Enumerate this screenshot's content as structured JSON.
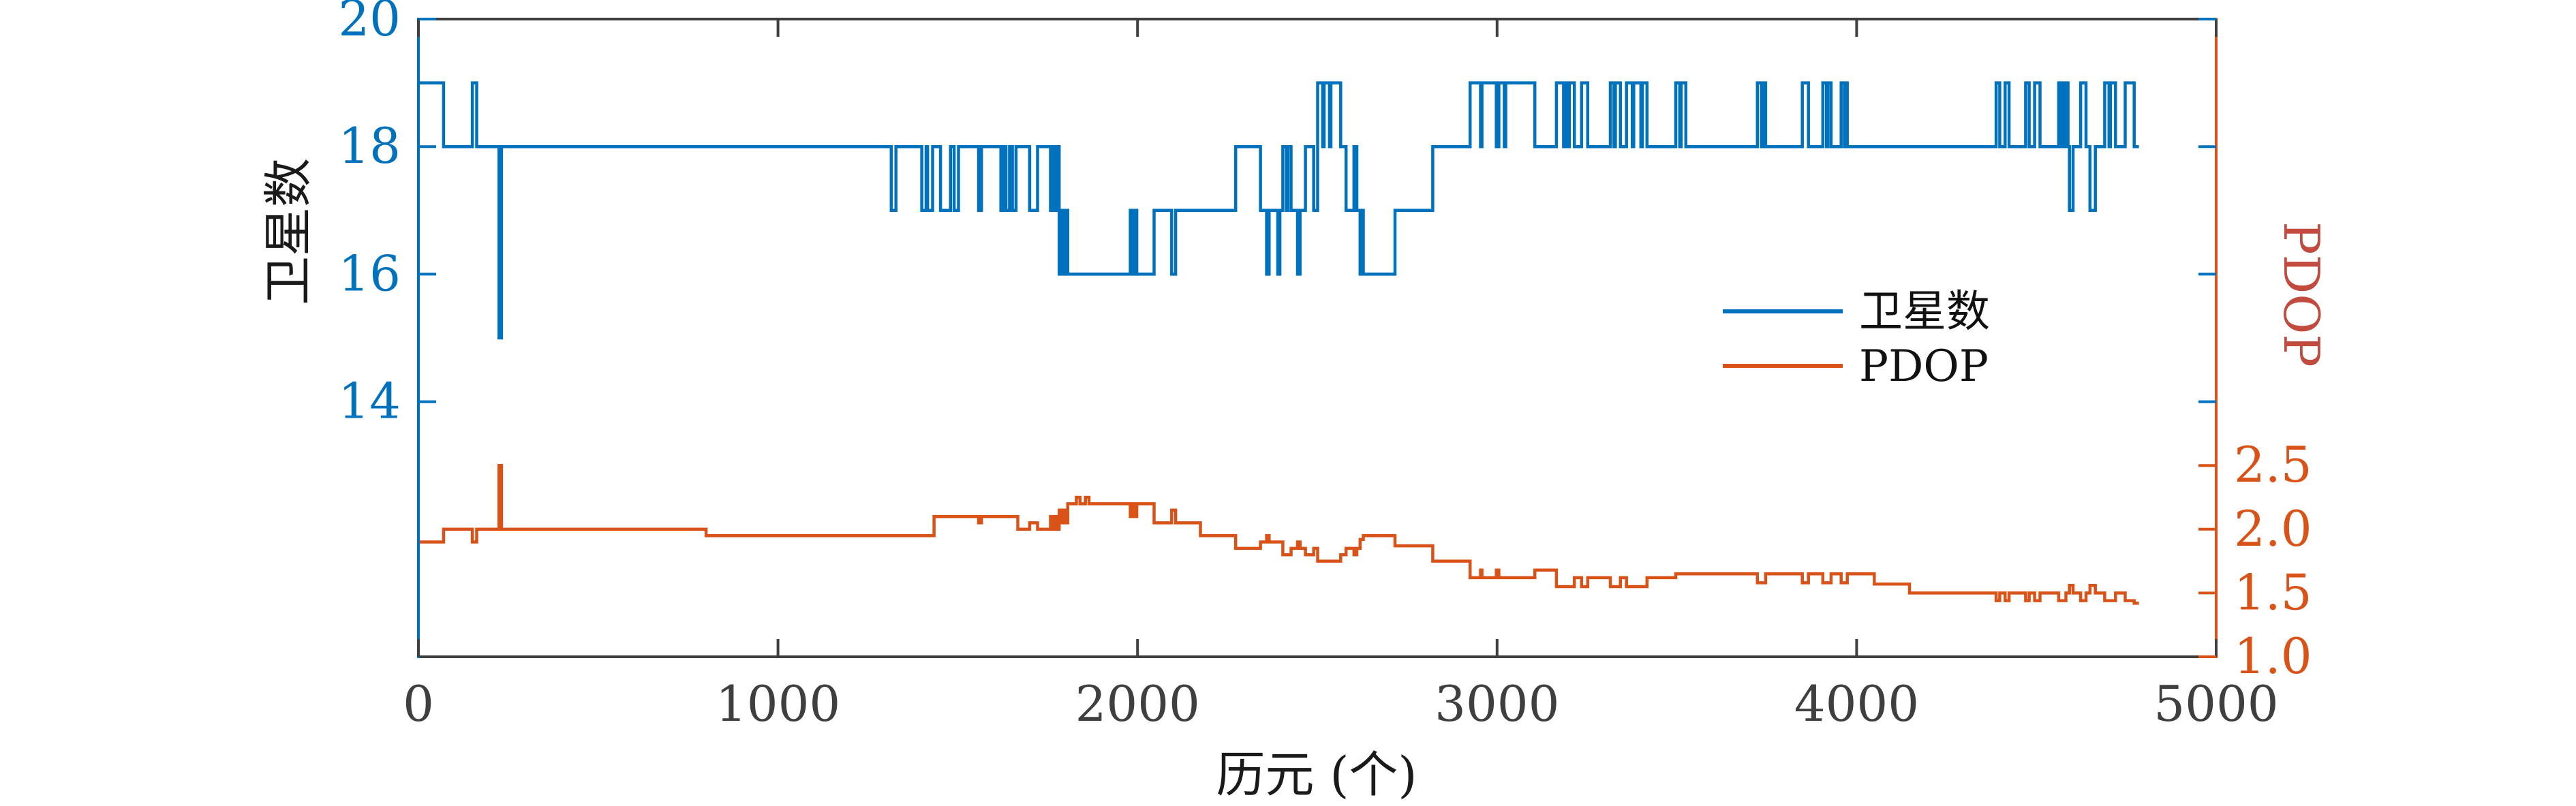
{
  "chart_data": {
    "type": "line",
    "style": "stairstep",
    "x_axis": {
      "label": "历元 (个)",
      "xlim": [
        0,
        5000
      ],
      "ticks": [
        "0",
        "1000",
        "2000",
        "3000",
        "4000",
        "5000"
      ],
      "tick_values": [
        0,
        1000,
        2000,
        3000,
        4000,
        5000
      ],
      "tick_color": "#3f3f3f",
      "label_color": "#1a1a1a"
    },
    "left_axis": {
      "label": "卫星数",
      "ylim": [
        10,
        20
      ],
      "ticks": [
        "14",
        "16",
        "18",
        "20"
      ],
      "tick_values": [
        14,
        16,
        18,
        20
      ],
      "axis_color": "#0072BD",
      "label_color": "#1a1a1a"
    },
    "right_axis": {
      "label": "PDOP",
      "ylim": [
        1,
        6
      ],
      "ticks": [
        "1.0",
        "1.5",
        "2.0",
        "2.5"
      ],
      "tick_values": [
        1.0,
        1.5,
        2.0,
        2.5
      ],
      "axis_color": "#D95319",
      "label_color": "#c24b3f"
    },
    "legend": [
      {
        "label": "卫星数",
        "color": "#0072BD"
      },
      {
        "label": "PDOP",
        "color": "#D95319"
      }
    ],
    "frame_color": "#3f3f3f",
    "grid": false,
    "end_epoch": 4785,
    "series": [
      {
        "name": "卫星数",
        "axis": "left",
        "color": "#0072BD",
        "steps": [
          [
            0,
            19
          ],
          [
            70,
            18
          ],
          [
            150,
            19
          ],
          [
            162,
            18
          ],
          [
            224,
            15
          ],
          [
            231,
            18
          ],
          [
            1315,
            17
          ],
          [
            1328,
            18
          ],
          [
            1400,
            17
          ],
          [
            1412,
            18
          ],
          [
            1416,
            17
          ],
          [
            1430,
            18
          ],
          [
            1452,
            17
          ],
          [
            1480,
            18
          ],
          [
            1490,
            17
          ],
          [
            1502,
            18
          ],
          [
            1558,
            17
          ],
          [
            1566,
            18
          ],
          [
            1620,
            17
          ],
          [
            1626,
            18
          ],
          [
            1634,
            17
          ],
          [
            1644,
            18
          ],
          [
            1652,
            17
          ],
          [
            1662,
            18
          ],
          [
            1700,
            17
          ],
          [
            1722,
            18
          ],
          [
            1758,
            17
          ],
          [
            1764,
            18
          ],
          [
            1770,
            17
          ],
          [
            1776,
            18
          ],
          [
            1782,
            16
          ],
          [
            1788,
            17
          ],
          [
            1794,
            16
          ],
          [
            1800,
            17
          ],
          [
            1806,
            16
          ],
          [
            1980,
            17
          ],
          [
            1987,
            16
          ],
          [
            1992,
            17
          ],
          [
            1998,
            16
          ],
          [
            2046,
            17
          ],
          [
            2095,
            16
          ],
          [
            2106,
            17
          ],
          [
            2273,
            18
          ],
          [
            2342,
            17
          ],
          [
            2359,
            16
          ],
          [
            2366,
            17
          ],
          [
            2390,
            16
          ],
          [
            2396,
            17
          ],
          [
            2404,
            18
          ],
          [
            2414,
            17
          ],
          [
            2418,
            18
          ],
          [
            2427,
            17
          ],
          [
            2445,
            16
          ],
          [
            2452,
            17
          ],
          [
            2467,
            18
          ],
          [
            2490,
            17
          ],
          [
            2501,
            19
          ],
          [
            2515,
            18
          ],
          [
            2519,
            19
          ],
          [
            2534,
            18
          ],
          [
            2538,
            19
          ],
          [
            2565,
            18
          ],
          [
            2580,
            17
          ],
          [
            2602,
            18
          ],
          [
            2610,
            17
          ],
          [
            2619,
            16
          ],
          [
            2625,
            17
          ],
          [
            2628,
            16
          ],
          [
            2716,
            17
          ],
          [
            2821,
            18
          ],
          [
            2925,
            19
          ],
          [
            2954,
            18
          ],
          [
            2958,
            19
          ],
          [
            2998,
            18
          ],
          [
            3005,
            19
          ],
          [
            3020,
            18
          ],
          [
            3024,
            19
          ],
          [
            3105,
            18
          ],
          [
            3165,
            19
          ],
          [
            3185,
            18
          ],
          [
            3189,
            19
          ],
          [
            3197,
            18
          ],
          [
            3201,
            19
          ],
          [
            3215,
            18
          ],
          [
            3235,
            19
          ],
          [
            3252,
            18
          ],
          [
            3315,
            19
          ],
          [
            3325,
            18
          ],
          [
            3329,
            19
          ],
          [
            3343,
            18
          ],
          [
            3360,
            19
          ],
          [
            3376,
            18
          ],
          [
            3380,
            19
          ],
          [
            3400,
            18
          ],
          [
            3404,
            19
          ],
          [
            3417,
            18
          ],
          [
            3497,
            19
          ],
          [
            3508,
            18
          ],
          [
            3512,
            19
          ],
          [
            3525,
            18
          ],
          [
            3724,
            19
          ],
          [
            3735,
            18
          ],
          [
            3739,
            19
          ],
          [
            3747,
            18
          ],
          [
            3849,
            19
          ],
          [
            3866,
            18
          ],
          [
            3906,
            19
          ],
          [
            3916,
            18
          ],
          [
            3920,
            19
          ],
          [
            3929,
            18
          ],
          [
            3957,
            19
          ],
          [
            3966,
            18
          ],
          [
            3970,
            19
          ],
          [
            3974,
            18
          ],
          [
            4388,
            19
          ],
          [
            4398,
            18
          ],
          [
            4413,
            19
          ],
          [
            4424,
            18
          ],
          [
            4470,
            19
          ],
          [
            4480,
            18
          ],
          [
            4495,
            19
          ],
          [
            4510,
            18
          ],
          [
            4562,
            19
          ],
          [
            4568,
            18
          ],
          [
            4571,
            19
          ],
          [
            4578,
            18
          ],
          [
            4582,
            19
          ],
          [
            4588,
            18
          ],
          [
            4592,
            17
          ],
          [
            4602,
            18
          ],
          [
            4623,
            19
          ],
          [
            4638,
            18
          ],
          [
            4649,
            17
          ],
          [
            4664,
            18
          ],
          [
            4690,
            19
          ],
          [
            4702,
            18
          ],
          [
            4706,
            19
          ],
          [
            4720,
            18
          ],
          [
            4747,
            19
          ],
          [
            4772,
            18
          ]
        ]
      },
      {
        "name": "PDOP",
        "axis": "right",
        "color": "#D95319",
        "steps": [
          [
            0,
            1.9
          ],
          [
            70,
            2.0
          ],
          [
            150,
            1.9
          ],
          [
            162,
            2.0
          ],
          [
            224,
            2.5
          ],
          [
            231,
            2.0
          ],
          [
            800,
            1.95
          ],
          [
            1434,
            2.1
          ],
          [
            1558,
            2.05
          ],
          [
            1566,
            2.1
          ],
          [
            1667,
            2.0
          ],
          [
            1700,
            2.05
          ],
          [
            1722,
            2.0
          ],
          [
            1758,
            2.1
          ],
          [
            1764,
            2.0
          ],
          [
            1770,
            2.1
          ],
          [
            1776,
            2.0
          ],
          [
            1782,
            2.15
          ],
          [
            1788,
            2.05
          ],
          [
            1794,
            2.15
          ],
          [
            1800,
            2.05
          ],
          [
            1806,
            2.2
          ],
          [
            1830,
            2.25
          ],
          [
            1840,
            2.2
          ],
          [
            1855,
            2.25
          ],
          [
            1865,
            2.2
          ],
          [
            1980,
            2.1
          ],
          [
            1987,
            2.2
          ],
          [
            1992,
            2.1
          ],
          [
            1998,
            2.2
          ],
          [
            2046,
            2.05
          ],
          [
            2095,
            2.15
          ],
          [
            2106,
            2.05
          ],
          [
            2175,
            1.95
          ],
          [
            2273,
            1.85
          ],
          [
            2342,
            1.9
          ],
          [
            2359,
            1.95
          ],
          [
            2366,
            1.9
          ],
          [
            2404,
            1.8
          ],
          [
            2427,
            1.85
          ],
          [
            2445,
            1.9
          ],
          [
            2452,
            1.85
          ],
          [
            2467,
            1.8
          ],
          [
            2490,
            1.85
          ],
          [
            2501,
            1.75
          ],
          [
            2565,
            1.8
          ],
          [
            2580,
            1.85
          ],
          [
            2602,
            1.8
          ],
          [
            2610,
            1.85
          ],
          [
            2619,
            1.92
          ],
          [
            2628,
            1.95
          ],
          [
            2716,
            1.87
          ],
          [
            2821,
            1.75
          ],
          [
            2925,
            1.62
          ],
          [
            2954,
            1.68
          ],
          [
            2958,
            1.62
          ],
          [
            2998,
            1.68
          ],
          [
            3005,
            1.62
          ],
          [
            3105,
            1.68
          ],
          [
            3165,
            1.55
          ],
          [
            3215,
            1.62
          ],
          [
            3235,
            1.55
          ],
          [
            3252,
            1.62
          ],
          [
            3315,
            1.55
          ],
          [
            3343,
            1.62
          ],
          [
            3360,
            1.55
          ],
          [
            3417,
            1.62
          ],
          [
            3497,
            1.65
          ],
          [
            3724,
            1.58
          ],
          [
            3747,
            1.65
          ],
          [
            3849,
            1.58
          ],
          [
            3866,
            1.65
          ],
          [
            3906,
            1.58
          ],
          [
            3929,
            1.65
          ],
          [
            3957,
            1.58
          ],
          [
            3974,
            1.65
          ],
          [
            4049,
            1.57
          ],
          [
            4147,
            1.5
          ],
          [
            4388,
            1.44
          ],
          [
            4398,
            1.5
          ],
          [
            4413,
            1.44
          ],
          [
            4424,
            1.5
          ],
          [
            4470,
            1.44
          ],
          [
            4480,
            1.5
          ],
          [
            4495,
            1.44
          ],
          [
            4510,
            1.5
          ],
          [
            4562,
            1.44
          ],
          [
            4582,
            1.5
          ],
          [
            4592,
            1.56
          ],
          [
            4602,
            1.5
          ],
          [
            4623,
            1.44
          ],
          [
            4638,
            1.5
          ],
          [
            4649,
            1.56
          ],
          [
            4664,
            1.5
          ],
          [
            4690,
            1.44
          ],
          [
            4720,
            1.5
          ],
          [
            4747,
            1.44
          ],
          [
            4772,
            1.42
          ]
        ]
      }
    ]
  }
}
